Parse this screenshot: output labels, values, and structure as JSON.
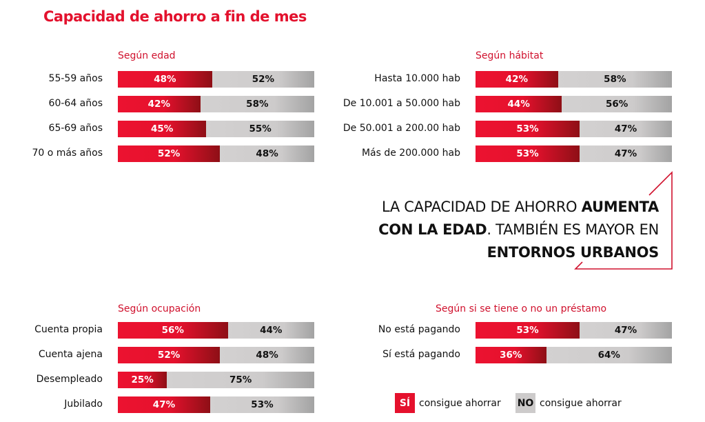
{
  "title": "Capacidad de ahorro a fin de mes",
  "chart_data": [
    {
      "type": "bar",
      "stacked": true,
      "orientation": "horizontal",
      "title": "Según edad",
      "categories": [
        "55-59 años",
        "60-64 años",
        "65-69 años",
        "70 o más años"
      ],
      "series": [
        {
          "name": "SÍ consigue ahorrar",
          "values": [
            48,
            42,
            45,
            52
          ]
        },
        {
          "name": "NO consigue ahorrar",
          "values": [
            52,
            58,
            55,
            48
          ]
        }
      ]
    },
    {
      "type": "bar",
      "stacked": true,
      "orientation": "horizontal",
      "title": "Según hábitat",
      "categories": [
        "Hasta 10.000 hab",
        "De 10.001 a 50.000 hab",
        "De 50.001 a 200.00 hab",
        "Más de 200.000 hab"
      ],
      "series": [
        {
          "name": "SÍ consigue ahorrar",
          "values": [
            42,
            44,
            53,
            53
          ]
        },
        {
          "name": "NO consigue ahorrar",
          "values": [
            58,
            56,
            47,
            47
          ]
        }
      ]
    },
    {
      "type": "bar",
      "stacked": true,
      "orientation": "horizontal",
      "title": "Según ocupación",
      "categories": [
        "Cuenta propia",
        "Cuenta ajena",
        "Desempleado",
        "Jubilado"
      ],
      "series": [
        {
          "name": "SÍ consigue ahorrar",
          "values": [
            56,
            52,
            25,
            47
          ]
        },
        {
          "name": "NO consigue ahorrar",
          "values": [
            44,
            48,
            75,
            53
          ]
        }
      ]
    },
    {
      "type": "bar",
      "stacked": true,
      "orientation": "horizontal",
      "title": "Según si se tiene o no un préstamo",
      "categories": [
        "No está pagando",
        "Sí está pagando"
      ],
      "series": [
        {
          "name": "SÍ consigue ahorrar",
          "values": [
            53,
            36
          ]
        },
        {
          "name": "NO consigue ahorrar",
          "values": [
            47,
            64
          ]
        }
      ]
    }
  ],
  "callout": {
    "t1": "LA CAPACIDAD DE AHORRO ",
    "b1": "AUMENTA",
    "b2": "CON LA EDAD",
    "t2": ". TAMBIÉN ES MAYOR EN",
    "b3": "ENTORNOS URBANOS"
  },
  "legend": {
    "si_box": "SÍ",
    "si_text": "consigue ahorrar",
    "no_box": "NO",
    "no_text": "consigue ahorrar"
  },
  "colors": {
    "si": "#e5112d",
    "no": "#cdcbcb",
    "accent": "#e3112d"
  }
}
